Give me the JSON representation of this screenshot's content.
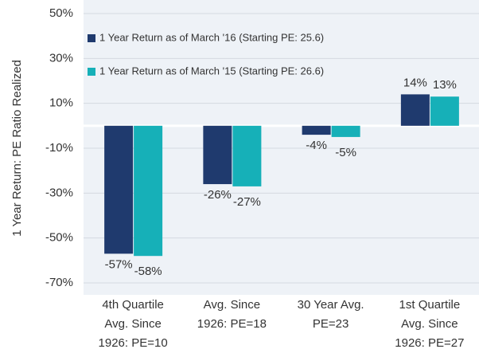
{
  "chart_data": {
    "type": "bar",
    "y_label": "1 Year Return: PE Ratio Realized",
    "categories": [
      [
        "4th Quartile",
        "Avg. Since",
        "1926: PE=10"
      ],
      [
        "Avg. Since",
        "1926: PE=18"
      ],
      [
        "30 Year Avg.",
        "PE=23"
      ],
      [
        "1st Quartile",
        "Avg. Since",
        "1926: PE=27"
      ]
    ],
    "series": [
      {
        "name": "1 Year Return as of March '16 (Starting PE: 25.6)",
        "color": "#1f3a6e",
        "values": [
          -57,
          -26,
          -4,
          14
        ],
        "value_labels": [
          "-57%",
          "-26%",
          "-4%",
          "14%"
        ]
      },
      {
        "name": "1 Year Return as of March '15 (Starting PE: 26.6)",
        "color": "#16b0b8",
        "values": [
          -58,
          -27,
          -5,
          13
        ],
        "value_labels": [
          "-58%",
          "-27%",
          "-5%",
          "13%"
        ]
      }
    ],
    "ylim": [
      -70,
      50
    ],
    "yticks": [
      {
        "value": -70,
        "label": "-70%"
      },
      {
        "value": -50,
        "label": "-50%"
      },
      {
        "value": -30,
        "label": "-30%"
      },
      {
        "value": -10,
        "label": "-10%"
      },
      {
        "value": 10,
        "label": "10%"
      },
      {
        "value": 30,
        "label": "30%"
      },
      {
        "value": 50,
        "label": "50%"
      }
    ],
    "grid": true
  }
}
